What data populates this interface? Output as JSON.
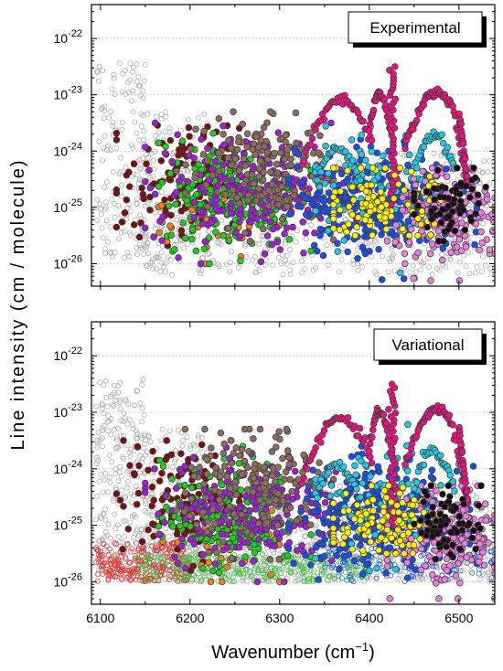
{
  "chart_data": {
    "type": "scatter",
    "xlabel": "Wavenumber (cm",
    "xlabel_unit_sup": "−1",
    "xlabel_close": ")",
    "ylabel": "Line intensity  (cm / molecule)",
    "xlim": [
      6090,
      6540
    ],
    "ylim": [
      4e-27,
      4e-22
    ],
    "x_ticks": [
      6100,
      6200,
      6300,
      6400,
      6500
    ],
    "y_ticks": [
      1e-26,
      1e-25,
      1e-24,
      1e-23,
      1e-22
    ],
    "y_tick_labels": [
      {
        "base": "10",
        "exp": "-26"
      },
      {
        "base": "10",
        "exp": "-25"
      },
      {
        "base": "10",
        "exp": "-24"
      },
      {
        "base": "10",
        "exp": "-23"
      },
      {
        "base": "10",
        "exp": "-22"
      }
    ],
    "y_scale": "log",
    "gridlines": "horizontal dotted at decades",
    "colors": {
      "background": "#ffffff",
      "axis": "#000000",
      "grid": "#b4b4b4",
      "open_marker_edge": "#a8a8a8",
      "maroon": "#7b1010",
      "green": "#22cc22",
      "purple": "#9b22cc",
      "orange": "#f08020",
      "brown": "#8c6c5c",
      "blue": "#1a4fe6",
      "cyan": "#22c8e6",
      "magenta": "#e6147e",
      "yellow": "#ffee10",
      "pink": "#e680d8",
      "black": "#1a0a14",
      "red_open": "#d83030",
      "green_open": "#40c040"
    },
    "panels": [
      {
        "label": "Experimental",
        "description_series": [
          {
            "color": "grey-open",
            "x_range": [
              6095,
              6540
            ],
            "y_log_range": [
              -26.2,
              -22.4
            ]
          },
          {
            "color": "maroon",
            "x_range": [
              6120,
              6250
            ],
            "y_log_range": [
              -25.8,
              -23.5
            ]
          },
          {
            "color": "green",
            "x_range": [
              6170,
              6330
            ],
            "y_log_range": [
              -26.0,
              -23.6
            ]
          },
          {
            "color": "purple",
            "x_range": [
              6150,
              6400
            ],
            "y_log_range": [
              -26.1,
              -23.5
            ]
          },
          {
            "color": "orange",
            "x_range": [
              6170,
              6300
            ],
            "y_log_range": [
              -26.0,
              -24.2
            ]
          },
          {
            "color": "brown",
            "x_range": [
              6180,
              6360
            ],
            "y_log_range": [
              -25.6,
              -23.3
            ]
          },
          {
            "color": "blue",
            "x_range": [
              6310,
              6520
            ],
            "y_log_range": [
              -26.4,
              -23.6
            ]
          },
          {
            "color": "cyan",
            "x_range": [
              6340,
              6500
            ],
            "y_log_range": [
              -26.2,
              -23.0
            ]
          },
          {
            "color": "magenta",
            "x_range": [
              6320,
              6510
            ],
            "y_log_range": [
              -25.5,
              -22.6
            ]
          },
          {
            "color": "yellow",
            "x_range": [
              6360,
              6480
            ],
            "y_log_range": [
              -25.5,
              -24.3
            ]
          },
          {
            "color": "pink",
            "x_range": [
              6420,
              6540
            ],
            "y_log_range": [
              -26.3,
              -24.3
            ]
          },
          {
            "color": "black",
            "x_range": [
              6450,
              6530
            ],
            "y_log_range": [
              -25.6,
              -24.3
            ]
          }
        ]
      },
      {
        "label": "Variational",
        "description_series": [
          {
            "color": "grey-open",
            "x_range": [
              6095,
              6540
            ],
            "y_log_range": [
              -26.0,
              -22.4
            ]
          },
          {
            "color": "red-open",
            "x_range": [
              6095,
              6200
            ],
            "y_log_range": [
              -26.0,
              -25.3
            ]
          },
          {
            "color": "green-open",
            "x_range": [
              6140,
              6400
            ],
            "y_log_range": [
              -26.0,
              -25.5
            ]
          },
          {
            "color": "maroon",
            "x_range": [
              6120,
              6250
            ],
            "y_log_range": [
              -25.6,
              -23.7
            ]
          },
          {
            "color": "green",
            "x_range": [
              6160,
              6340
            ],
            "y_log_range": [
              -26.0,
              -23.8
            ]
          },
          {
            "color": "purple",
            "x_range": [
              6150,
              6400
            ],
            "y_log_range": [
              -26.0,
              -23.7
            ]
          },
          {
            "color": "orange",
            "x_range": [
              6160,
              6300
            ],
            "y_log_range": [
              -26.0,
              -24.2
            ]
          },
          {
            "color": "brown",
            "x_range": [
              6180,
              6360
            ],
            "y_log_range": [
              -25.6,
              -23.3
            ]
          },
          {
            "color": "blue",
            "x_range": [
              6310,
              6520
            ],
            "y_log_range": [
              -26.1,
              -23.8
            ]
          },
          {
            "color": "cyan",
            "x_range": [
              6340,
              6500
            ],
            "y_log_range": [
              -26.0,
              -23.0
            ]
          },
          {
            "color": "magenta",
            "x_range": [
              6320,
              6510
            ],
            "y_log_range": [
              -25.4,
              -22.6
            ]
          },
          {
            "color": "yellow",
            "x_range": [
              6360,
              6480
            ],
            "y_log_range": [
              -25.5,
              -24.3
            ]
          },
          {
            "color": "pink",
            "x_range": [
              6420,
              6540
            ],
            "y_log_range": [
              -26.2,
              -24.3
            ]
          },
          {
            "color": "black",
            "x_range": [
              6450,
              6530
            ],
            "y_log_range": [
              -25.6,
              -24.3
            ]
          }
        ]
      }
    ]
  }
}
